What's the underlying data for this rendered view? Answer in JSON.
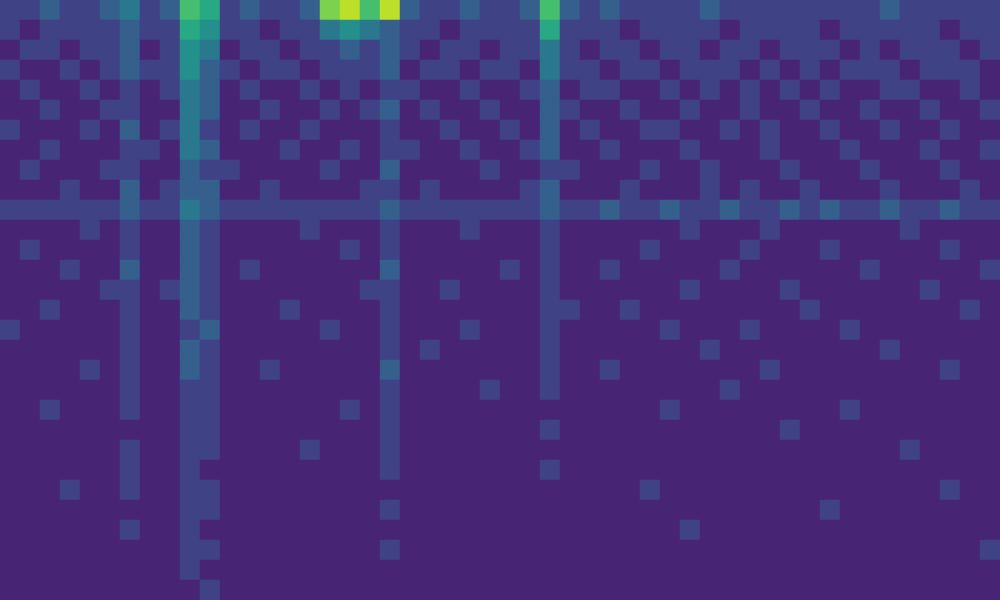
{
  "chart_data": {
    "type": "heatmap",
    "tick_labels": false,
    "grid": false,
    "zlim": [
      0,
      10
    ],
    "cells": [
      [
        2,
        2,
        3,
        2,
        2,
        3,
        4,
        2,
        3,
        7,
        6,
        2,
        3,
        2,
        2,
        3,
        8,
        9,
        7,
        9,
        3,
        2,
        2,
        3,
        2,
        2,
        3,
        7,
        3,
        2,
        3,
        2,
        2,
        2,
        2,
        3,
        2,
        2,
        2,
        2,
        2,
        2,
        2,
        2,
        3,
        2,
        2,
        2,
        2,
        2
      ],
      [
        2,
        1,
        2,
        2,
        2,
        2,
        3,
        2,
        2,
        6,
        5,
        2,
        2,
        1,
        2,
        2,
        4,
        5,
        4,
        3,
        2,
        2,
        1,
        2,
        2,
        2,
        2,
        6,
        2,
        2,
        2,
        1,
        2,
        2,
        2,
        2,
        1,
        2,
        2,
        2,
        2,
        1,
        2,
        2,
        2,
        2,
        2,
        1,
        2,
        2
      ],
      [
        1,
        2,
        2,
        1,
        2,
        2,
        3,
        1,
        2,
        5,
        4,
        1,
        2,
        2,
        1,
        2,
        2,
        3,
        2,
        3,
        2,
        1,
        2,
        2,
        1,
        2,
        2,
        4,
        2,
        1,
        2,
        2,
        1,
        2,
        2,
        1,
        2,
        2,
        1,
        2,
        2,
        2,
        1,
        2,
        1,
        2,
        2,
        2,
        1,
        2
      ],
      [
        2,
        1,
        1,
        2,
        1,
        2,
        3,
        2,
        2,
        5,
        3,
        2,
        1,
        2,
        2,
        1,
        2,
        2,
        2,
        3,
        1,
        2,
        2,
        1,
        2,
        2,
        1,
        4,
        2,
        2,
        1,
        2,
        2,
        1,
        2,
        2,
        2,
        1,
        2,
        1,
        2,
        1,
        2,
        2,
        2,
        1,
        2,
        2,
        2,
        1
      ],
      [
        1,
        2,
        1,
        1,
        2,
        1,
        2,
        1,
        2,
        4,
        3,
        1,
        2,
        1,
        1,
        2,
        1,
        2,
        1,
        2,
        2,
        1,
        1,
        2,
        1,
        1,
        2,
        3,
        1,
        2,
        2,
        1,
        1,
        2,
        1,
        2,
        1,
        2,
        1,
        2,
        1,
        2,
        1,
        1,
        2,
        2,
        1,
        1,
        2,
        1
      ],
      [
        1,
        1,
        2,
        1,
        1,
        2,
        2,
        1,
        1,
        4,
        3,
        1,
        1,
        2,
        1,
        1,
        2,
        1,
        2,
        3,
        1,
        2,
        1,
        1,
        2,
        1,
        1,
        3,
        2,
        1,
        1,
        2,
        1,
        1,
        2,
        1,
        1,
        2,
        1,
        1,
        2,
        1,
        1,
        2,
        1,
        1,
        2,
        1,
        1,
        2
      ],
      [
        2,
        1,
        1,
        1,
        2,
        1,
        3,
        1,
        2,
        4,
        2,
        1,
        2,
        1,
        1,
        2,
        1,
        1,
        1,
        2,
        1,
        1,
        2,
        1,
        1,
        2,
        1,
        3,
        1,
        2,
        1,
        1,
        2,
        2,
        1,
        1,
        2,
        1,
        2,
        1,
        1,
        2,
        1,
        1,
        2,
        1,
        1,
        2,
        1,
        1
      ],
      [
        1,
        1,
        2,
        1,
        1,
        1,
        2,
        2,
        1,
        4,
        3,
        1,
        1,
        1,
        2,
        1,
        1,
        2,
        1,
        2,
        2,
        1,
        1,
        2,
        1,
        1,
        2,
        3,
        1,
        1,
        2,
        1,
        1,
        1,
        2,
        1,
        1,
        1,
        2,
        1,
        1,
        1,
        2,
        1,
        1,
        1,
        2,
        1,
        1,
        2
      ],
      [
        1,
        2,
        1,
        1,
        1,
        2,
        2,
        1,
        1,
        3,
        2,
        2,
        1,
        1,
        1,
        1,
        2,
        1,
        1,
        3,
        1,
        1,
        1,
        1,
        2,
        1,
        1,
        2,
        2,
        1,
        1,
        1,
        2,
        1,
        1,
        2,
        1,
        1,
        1,
        2,
        1,
        1,
        1,
        2,
        1,
        1,
        1,
        2,
        1,
        1
      ],
      [
        1,
        1,
        1,
        2,
        1,
        1,
        3,
        1,
        2,
        3,
        3,
        1,
        1,
        2,
        1,
        1,
        1,
        1,
        2,
        2,
        1,
        2,
        1,
        1,
        1,
        1,
        2,
        3,
        1,
        1,
        1,
        2,
        1,
        1,
        1,
        2,
        1,
        2,
        1,
        1,
        2,
        1,
        1,
        1,
        2,
        1,
        1,
        1,
        2,
        1
      ],
      [
        2,
        2,
        2,
        2,
        2,
        2,
        3,
        2,
        2,
        4,
        3,
        2,
        2,
        2,
        2,
        2,
        2,
        2,
        2,
        3,
        2,
        2,
        2,
        2,
        2,
        2,
        2,
        3,
        2,
        2,
        3,
        2,
        2,
        3,
        2,
        2,
        3,
        2,
        2,
        3,
        2,
        3,
        2,
        2,
        3,
        2,
        2,
        3,
        2,
        2
      ],
      [
        1,
        1,
        1,
        1,
        2,
        1,
        2,
        1,
        1,
        3,
        2,
        1,
        1,
        1,
        1,
        2,
        1,
        1,
        1,
        2,
        1,
        1,
        1,
        2,
        1,
        1,
        1,
        2,
        1,
        1,
        1,
        1,
        1,
        1,
        2,
        1,
        1,
        1,
        2,
        1,
        1,
        1,
        1,
        1,
        1,
        2,
        1,
        1,
        1,
        1
      ],
      [
        1,
        2,
        1,
        1,
        1,
        1,
        2,
        1,
        1,
        3,
        2,
        1,
        1,
        1,
        1,
        1,
        1,
        2,
        1,
        2,
        1,
        1,
        1,
        1,
        1,
        1,
        1,
        2,
        1,
        1,
        1,
        1,
        2,
        1,
        1,
        1,
        1,
        2,
        1,
        1,
        1,
        2,
        1,
        1,
        1,
        1,
        1,
        2,
        1,
        1
      ],
      [
        1,
        1,
        1,
        2,
        1,
        1,
        3,
        1,
        1,
        3,
        2,
        1,
        2,
        1,
        1,
        1,
        1,
        1,
        1,
        3,
        1,
        1,
        1,
        1,
        1,
        2,
        1,
        2,
        1,
        1,
        2,
        1,
        1,
        1,
        1,
        1,
        2,
        1,
        1,
        1,
        1,
        1,
        1,
        2,
        1,
        1,
        1,
        1,
        1,
        2
      ],
      [
        1,
        1,
        1,
        1,
        1,
        2,
        2,
        1,
        2,
        3,
        2,
        1,
        1,
        1,
        1,
        1,
        1,
        1,
        2,
        2,
        1,
        1,
        2,
        1,
        1,
        1,
        1,
        2,
        1,
        1,
        1,
        1,
        1,
        1,
        2,
        1,
        1,
        1,
        1,
        2,
        1,
        1,
        1,
        1,
        1,
        1,
        2,
        1,
        1,
        1
      ],
      [
        1,
        1,
        2,
        1,
        1,
        1,
        2,
        1,
        1,
        3,
        2,
        1,
        1,
        1,
        2,
        1,
        1,
        1,
        1,
        2,
        1,
        1,
        1,
        1,
        1,
        1,
        1,
        2,
        2,
        1,
        1,
        2,
        1,
        1,
        1,
        1,
        1,
        1,
        1,
        1,
        2,
        1,
        1,
        1,
        1,
        1,
        1,
        1,
        2,
        1
      ],
      [
        2,
        1,
        1,
        1,
        1,
        1,
        2,
        1,
        1,
        2,
        3,
        1,
        1,
        1,
        1,
        1,
        2,
        1,
        1,
        2,
        1,
        1,
        1,
        2,
        1,
        1,
        1,
        2,
        1,
        1,
        1,
        1,
        1,
        2,
        1,
        1,
        1,
        2,
        1,
        1,
        1,
        1,
        2,
        1,
        1,
        1,
        1,
        1,
        1,
        1
      ],
      [
        1,
        1,
        1,
        1,
        1,
        1,
        2,
        1,
        1,
        3,
        2,
        1,
        1,
        1,
        1,
        1,
        1,
        1,
        1,
        2,
        1,
        2,
        1,
        1,
        1,
        1,
        1,
        2,
        1,
        1,
        1,
        1,
        1,
        1,
        1,
        2,
        1,
        1,
        1,
        1,
        1,
        1,
        1,
        1,
        2,
        1,
        1,
        1,
        1,
        1
      ],
      [
        1,
        1,
        1,
        1,
        2,
        1,
        2,
        1,
        1,
        3,
        2,
        1,
        1,
        2,
        1,
        1,
        1,
        1,
        1,
        3,
        1,
        1,
        1,
        1,
        1,
        1,
        1,
        2,
        1,
        1,
        2,
        1,
        1,
        1,
        1,
        1,
        1,
        1,
        2,
        1,
        1,
        1,
        1,
        1,
        1,
        1,
        1,
        2,
        1,
        1
      ],
      [
        1,
        1,
        1,
        1,
        1,
        1,
        2,
        1,
        1,
        2,
        2,
        1,
        1,
        1,
        1,
        1,
        1,
        1,
        1,
        2,
        1,
        1,
        1,
        1,
        2,
        1,
        1,
        2,
        1,
        1,
        1,
        1,
        1,
        1,
        1,
        1,
        2,
        1,
        1,
        1,
        1,
        1,
        1,
        1,
        1,
        1,
        1,
        1,
        1,
        1
      ],
      [
        1,
        1,
        2,
        1,
        1,
        1,
        2,
        1,
        1,
        2,
        2,
        1,
        1,
        1,
        1,
        1,
        1,
        2,
        1,
        2,
        1,
        1,
        1,
        1,
        1,
        1,
        1,
        1,
        1,
        1,
        1,
        1,
        1,
        2,
        1,
        1,
        1,
        1,
        1,
        1,
        1,
        1,
        2,
        1,
        1,
        1,
        1,
        1,
        1,
        1
      ],
      [
        1,
        1,
        1,
        1,
        1,
        1,
        1,
        1,
        1,
        2,
        2,
        1,
        1,
        1,
        1,
        1,
        1,
        1,
        1,
        2,
        1,
        1,
        1,
        1,
        1,
        1,
        1,
        2,
        1,
        1,
        1,
        1,
        1,
        1,
        1,
        1,
        1,
        1,
        1,
        2,
        1,
        1,
        1,
        1,
        1,
        1,
        1,
        1,
        1,
        1
      ],
      [
        1,
        1,
        1,
        1,
        1,
        1,
        2,
        1,
        1,
        2,
        2,
        1,
        1,
        1,
        1,
        2,
        1,
        1,
        1,
        2,
        1,
        1,
        1,
        1,
        1,
        1,
        1,
        1,
        1,
        1,
        1,
        1,
        1,
        1,
        1,
        1,
        1,
        1,
        1,
        1,
        1,
        1,
        1,
        1,
        1,
        2,
        1,
        1,
        1,
        1
      ],
      [
        1,
        1,
        1,
        1,
        1,
        1,
        2,
        1,
        1,
        2,
        1,
        1,
        1,
        1,
        1,
        1,
        1,
        1,
        1,
        2,
        1,
        1,
        1,
        1,
        1,
        1,
        1,
        2,
        1,
        1,
        1,
        1,
        1,
        1,
        1,
        1,
        1,
        1,
        1,
        1,
        1,
        1,
        1,
        1,
        1,
        1,
        1,
        1,
        1,
        1
      ],
      [
        1,
        1,
        1,
        2,
        1,
        1,
        2,
        1,
        1,
        2,
        2,
        1,
        1,
        1,
        1,
        1,
        1,
        1,
        1,
        1,
        1,
        1,
        1,
        1,
        1,
        1,
        1,
        1,
        1,
        1,
        1,
        1,
        2,
        1,
        1,
        1,
        1,
        1,
        1,
        1,
        1,
        1,
        1,
        1,
        1,
        1,
        1,
        2,
        1,
        1
      ],
      [
        1,
        1,
        1,
        1,
        1,
        1,
        1,
        1,
        1,
        2,
        2,
        1,
        1,
        1,
        1,
        1,
        1,
        1,
        1,
        2,
        1,
        1,
        1,
        1,
        1,
        1,
        1,
        1,
        1,
        1,
        1,
        1,
        1,
        1,
        1,
        1,
        1,
        1,
        1,
        1,
        1,
        2,
        1,
        1,
        1,
        1,
        1,
        1,
        1,
        1
      ],
      [
        1,
        1,
        1,
        1,
        1,
        1,
        2,
        1,
        1,
        2,
        1,
        1,
        1,
        1,
        1,
        1,
        1,
        1,
        1,
        1,
        1,
        1,
        1,
        1,
        1,
        1,
        1,
        1,
        1,
        1,
        1,
        1,
        1,
        1,
        2,
        1,
        1,
        1,
        1,
        1,
        1,
        1,
        1,
        1,
        1,
        1,
        1,
        1,
        1,
        1
      ],
      [
        1,
        1,
        1,
        1,
        1,
        1,
        1,
        1,
        1,
        2,
        2,
        1,
        1,
        1,
        1,
        1,
        1,
        1,
        1,
        2,
        1,
        1,
        1,
        1,
        1,
        1,
        1,
        1,
        1,
        1,
        1,
        1,
        1,
        1,
        1,
        1,
        1,
        1,
        1,
        1,
        1,
        1,
        1,
        1,
        1,
        1,
        1,
        1,
        1,
        2
      ],
      [
        1,
        1,
        1,
        1,
        1,
        1,
        1,
        1,
        1,
        2,
        1,
        1,
        1,
        1,
        1,
        1,
        1,
        1,
        1,
        1,
        1,
        1,
        1,
        1,
        1,
        1,
        1,
        1,
        1,
        1,
        1,
        1,
        1,
        1,
        1,
        1,
        1,
        1,
        1,
        1,
        1,
        1,
        1,
        1,
        1,
        1,
        1,
        1,
        1,
        1
      ],
      [
        1,
        1,
        1,
        1,
        1,
        1,
        1,
        1,
        1,
        1,
        2,
        1,
        1,
        1,
        1,
        1,
        1,
        1,
        1,
        1,
        1,
        1,
        1,
        1,
        1,
        1,
        1,
        1,
        1,
        1,
        1,
        1,
        1,
        1,
        1,
        1,
        1,
        1,
        1,
        1,
        1,
        1,
        1,
        1,
        1,
        1,
        1,
        1,
        1,
        1
      ]
    ]
  }
}
